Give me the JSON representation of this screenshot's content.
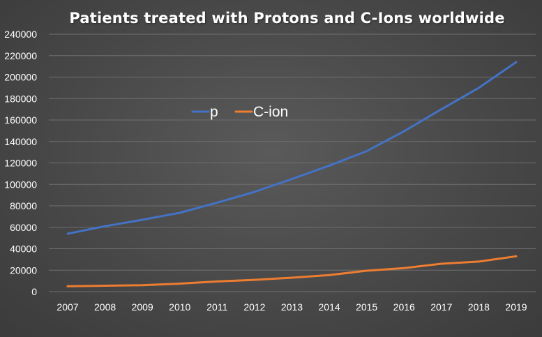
{
  "chart_data": {
    "type": "line",
    "title": "Patients treated with Protons and C-Ions worldwide",
    "xlabel": "",
    "ylabel": "",
    "categories": [
      "2007",
      "2008",
      "2009",
      "2010",
      "2011",
      "2012",
      "2013",
      "2014",
      "2015",
      "2016",
      "2017",
      "2018",
      "2019"
    ],
    "series": [
      {
        "name": "p",
        "color": "#4472C4",
        "values": [
          54000,
          61000,
          67000,
          73500,
          83000,
          93000,
          105000,
          117500,
          131000,
          149500,
          170000,
          190000,
          214000
        ]
      },
      {
        "name": "C-ion",
        "color": "#ED7D31",
        "values": [
          5000,
          5500,
          6000,
          7500,
          9500,
          11000,
          13000,
          15500,
          19500,
          22000,
          26000,
          28000,
          33000
        ]
      }
    ],
    "ylim": [
      0,
      240000
    ],
    "yticks": [
      "0",
      "20000",
      "40000",
      "60000",
      "80000",
      "100000",
      "120000",
      "140000",
      "160000",
      "180000",
      "200000",
      "220000",
      "240000"
    ],
    "grid": true,
    "legend": "top-left"
  }
}
